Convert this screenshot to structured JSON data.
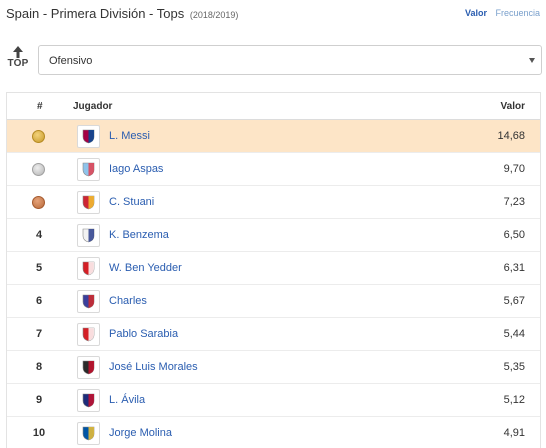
{
  "header": {
    "title": "Spain - Primera División - Tops",
    "season": "(2018/2019)",
    "mode_active": "Valor",
    "mode_inactive": "Frecuencia"
  },
  "top_icon": {
    "label": "TOP"
  },
  "category_select": {
    "value": "Ofensivo"
  },
  "table": {
    "columns": {
      "rank": "#",
      "player": "Jugador",
      "value": "Valor"
    },
    "rows": [
      {
        "rank": "",
        "medal": "gold",
        "player": "L. Messi",
        "value": "14,68",
        "club_colors": [
          "#a50044",
          "#004d98"
        ]
      },
      {
        "rank": "",
        "medal": "silver",
        "player": "Iago Aspas",
        "value": "9,70",
        "club_colors": [
          "#8fc3ea",
          "#e3404f"
        ]
      },
      {
        "rank": "",
        "medal": "bronze",
        "player": "C. Stuani",
        "value": "7,23",
        "club_colors": [
          "#cd2534",
          "#f2c230"
        ]
      },
      {
        "rank": "4",
        "player": "K. Benzema",
        "value": "6,50",
        "club_colors": [
          "#f2f2f2",
          "#2c3e8c"
        ]
      },
      {
        "rank": "5",
        "player": "W. Ben Yedder",
        "value": "6,31",
        "club_colors": [
          "#d41f26",
          "#ffffff"
        ]
      },
      {
        "rank": "6",
        "player": "Charles",
        "value": "5,67",
        "club_colors": [
          "#3a3f9c",
          "#d42a2a"
        ]
      },
      {
        "rank": "7",
        "player": "Pablo Sarabia",
        "value": "5,44",
        "club_colors": [
          "#d41f26",
          "#ffffff"
        ]
      },
      {
        "rank": "8",
        "player": "José Luis Morales",
        "value": "5,35",
        "club_colors": [
          "#2a2a2a",
          "#c8102e"
        ]
      },
      {
        "rank": "9",
        "player": "L. Ávila",
        "value": "5,12",
        "club_colors": [
          "#1d2c7a",
          "#c8102e"
        ]
      },
      {
        "rank": "10",
        "player": "Jorge Molina",
        "value": "4,91",
        "club_colors": [
          "#0055a5",
          "#f2c230"
        ]
      }
    ]
  }
}
